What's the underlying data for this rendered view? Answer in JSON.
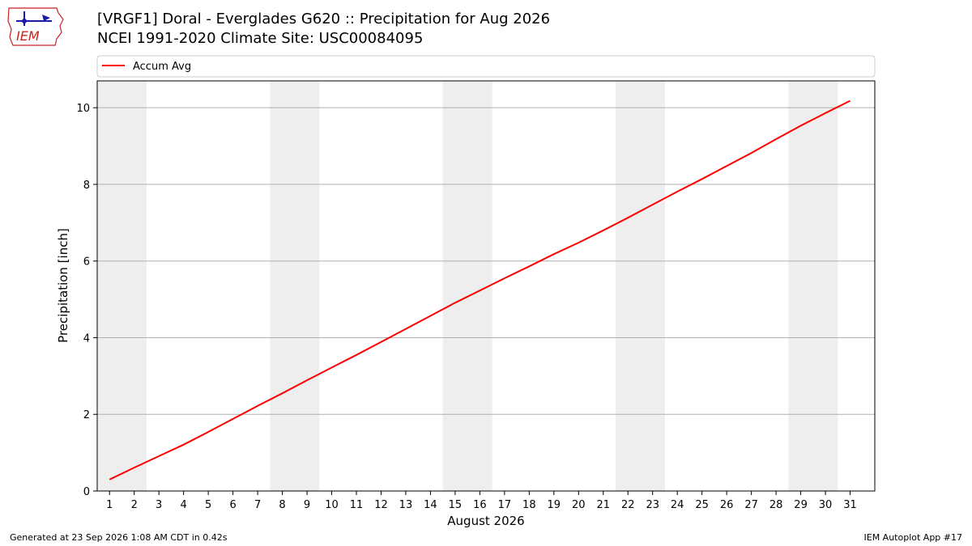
{
  "header": {
    "logo_text": "IEM",
    "title_line1": "[VRGF1] Doral - Everglades G620 :: Precipitation for Aug 2026",
    "title_line2": "NCEI 1991-2020 Climate Site: USC00084095"
  },
  "footer": {
    "generated": "Generated at 23 Sep 2026 1:08 AM CDT in 0.42s",
    "app": "IEM Autoplot App #17"
  },
  "colors": {
    "series": "#ff0000",
    "weekend_band": "#eeeeee",
    "grid": "#b0b0b0",
    "logo": "#cc2222"
  },
  "chart_data": {
    "type": "line",
    "xlabel": "August 2026",
    "ylabel": "Precipitation [inch]",
    "x": [
      1,
      2,
      3,
      4,
      5,
      6,
      7,
      8,
      9,
      10,
      11,
      12,
      13,
      14,
      15,
      16,
      17,
      18,
      19,
      20,
      21,
      22,
      23,
      24,
      25,
      26,
      27,
      28,
      29,
      30,
      31
    ],
    "series": [
      {
        "name": "Accum Avg",
        "color": "#ff0000",
        "values": [
          0.3,
          0.61,
          0.91,
          1.21,
          1.54,
          1.88,
          2.22,
          2.55,
          2.89,
          3.22,
          3.55,
          3.89,
          4.23,
          4.57,
          4.91,
          5.23,
          5.55,
          5.86,
          6.18,
          6.48,
          6.8,
          7.13,
          7.47,
          7.81,
          8.14,
          8.48,
          8.82,
          9.18,
          9.53,
          9.86,
          10.18
        ]
      }
    ],
    "x_ticks": [
      "1",
      "2",
      "3",
      "4",
      "5",
      "6",
      "7",
      "8",
      "9",
      "10",
      "11",
      "12",
      "13",
      "14",
      "15",
      "16",
      "17",
      "18",
      "19",
      "20",
      "21",
      "22",
      "23",
      "24",
      "25",
      "26",
      "27",
      "28",
      "29",
      "30",
      "31"
    ],
    "y_ticks": [
      "0",
      "2",
      "4",
      "6",
      "8",
      "10"
    ],
    "xlim": [
      0.5,
      32
    ],
    "ylim": [
      0,
      10.7
    ],
    "grid": "horizontal",
    "legend_position": "top",
    "weekend_bands": [
      [
        0.5,
        2.5
      ],
      [
        7.5,
        9.5
      ],
      [
        14.5,
        16.5
      ],
      [
        21.5,
        23.5
      ],
      [
        28.5,
        30.5
      ]
    ]
  }
}
